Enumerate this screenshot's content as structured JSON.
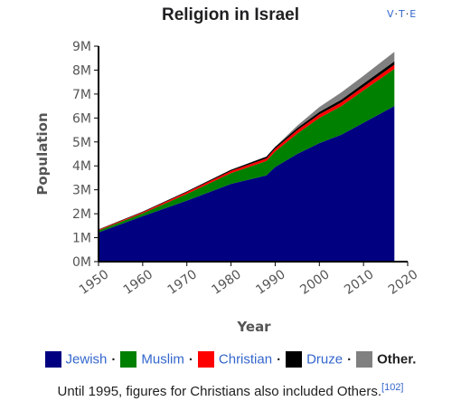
{
  "vte": {
    "v": "V",
    "t": "T",
    "e": "E"
  },
  "legend_items": [
    {
      "label": "Jewish",
      "color": "#000080",
      "link": true
    },
    {
      "label": "Muslim",
      "color": "#008000",
      "link": true
    },
    {
      "label": "Christian",
      "color": "#ff0000",
      "link": true
    },
    {
      "label": "Druze",
      "color": "#000000",
      "link": true
    },
    {
      "label": "Other.",
      "color": "#808080",
      "link": false
    }
  ],
  "caption": {
    "text": "Until 1995, figures for Christians also included Others.",
    "ref": "[102]"
  },
  "chart_data": {
    "type": "area",
    "stacked": true,
    "title": "Religion in Israel",
    "xlabel": "Year",
    "ylabel": "Population",
    "x": [
      1950,
      1960,
      1970,
      1980,
      1988,
      1990,
      1995,
      2000,
      2005,
      2010,
      2017
    ],
    "xlim": [
      1950,
      2020
    ],
    "ylim": [
      0,
      9000000
    ],
    "xticks": [
      "1950",
      "1960",
      "1970",
      "1980",
      "1990",
      "2000",
      "2010",
      "2020"
    ],
    "yticks": [
      "0M",
      "1M",
      "2M",
      "3M",
      "4M",
      "5M",
      "6M",
      "7M",
      "8M",
      "9M"
    ],
    "grid": false,
    "legend_position": "bottom",
    "series": [
      {
        "name": "Jewish",
        "color": "#000080",
        "values": [
          1220000,
          1900000,
          2550000,
          3250000,
          3600000,
          3950000,
          4500000,
          4950000,
          5300000,
          5800000,
          6500000
        ]
      },
      {
        "name": "Muslim",
        "color": "#008000",
        "values": [
          80000,
          120000,
          280000,
          450000,
          600000,
          650000,
          850000,
          1050000,
          1200000,
          1350000,
          1550000
        ]
      },
      {
        "name": "Christian",
        "color": "#ff0000",
        "values": [
          30000,
          45000,
          70000,
          90000,
          110000,
          115000,
          140000,
          150000,
          150000,
          155000,
          175000
        ]
      },
      {
        "name": "Druze",
        "color": "#000000",
        "values": [
          15000,
          25000,
          35000,
          50000,
          75000,
          80000,
          90000,
          105000,
          120000,
          130000,
          140000
        ]
      },
      {
        "name": "Other",
        "color": "#808080",
        "values": [
          0,
          0,
          0,
          0,
          0,
          0,
          100000,
          200000,
          300000,
          330000,
          400000
        ]
      }
    ]
  }
}
